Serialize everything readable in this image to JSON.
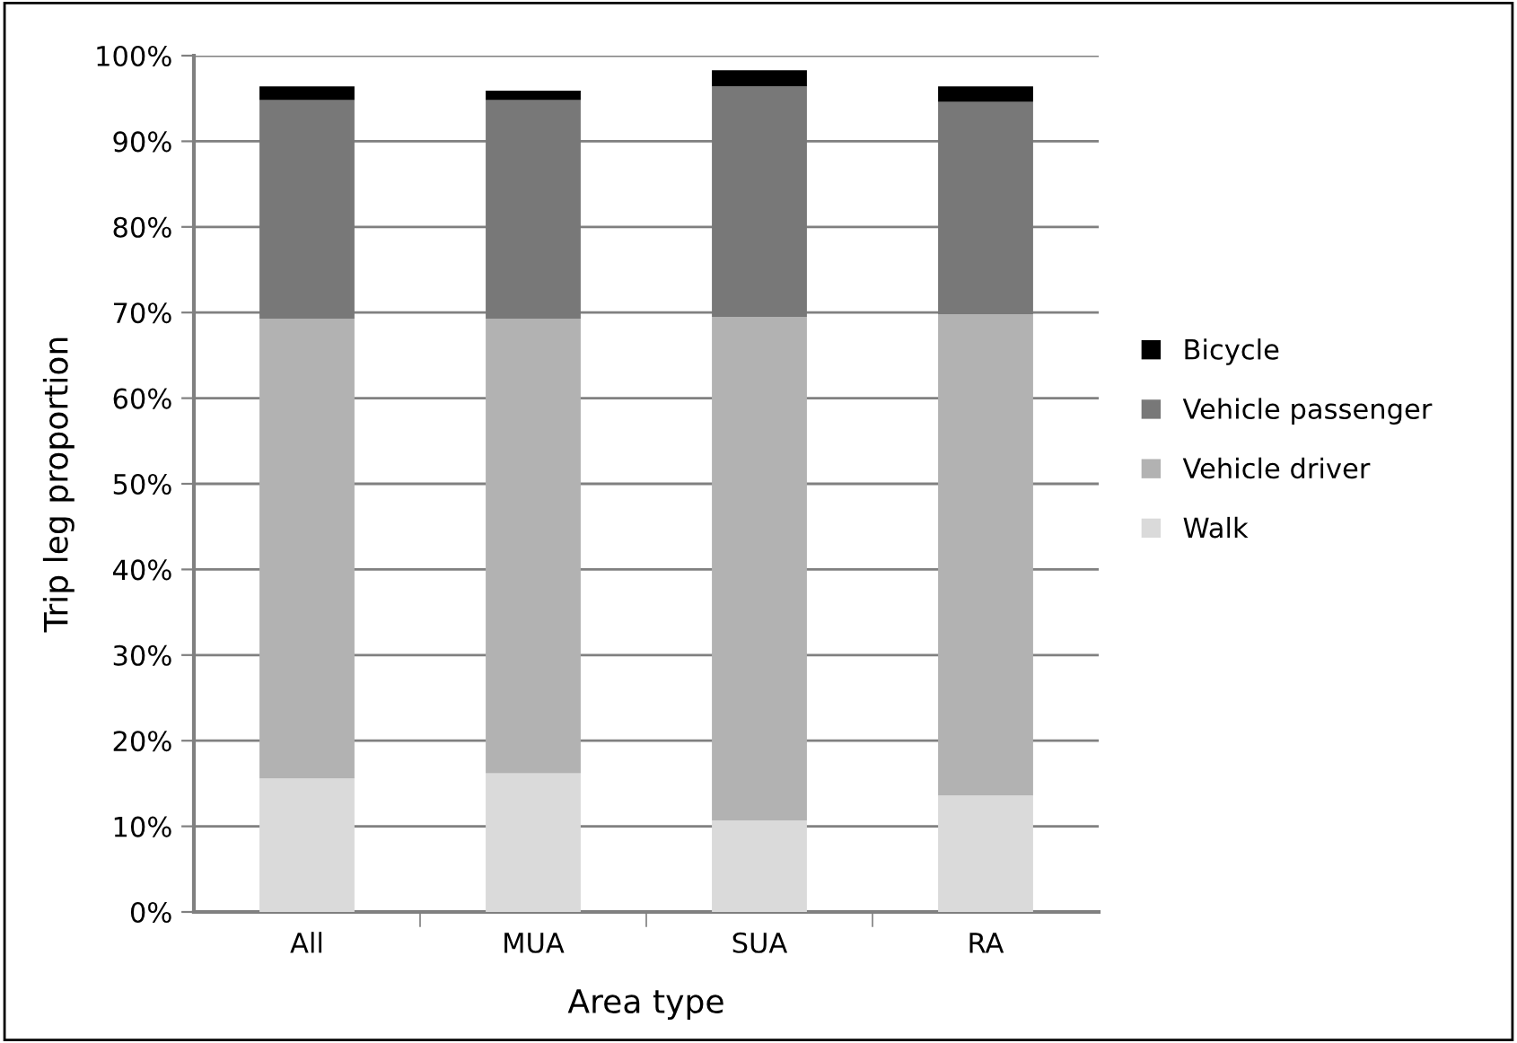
{
  "chart_data": {
    "type": "bar",
    "stacked": true,
    "xlabel": "Area type",
    "ylabel": "Trip leg proportion",
    "categories": [
      "All",
      "MUA",
      "SUA",
      "RA"
    ],
    "series": [
      {
        "name": "Walk",
        "color": "#dadada",
        "values": [
          15.6,
          16.2,
          10.7,
          13.6
        ]
      },
      {
        "name": "Vehicle driver",
        "color": "#b2b2b2",
        "values": [
          53.7,
          53.1,
          58.8,
          56.2
        ]
      },
      {
        "name": "Vehicle passenger",
        "color": "#787878",
        "values": [
          25.5,
          25.5,
          26.9,
          24.8
        ]
      },
      {
        "name": "Bicycle",
        "color": "#000000",
        "values": [
          1.6,
          1.1,
          1.9,
          1.8
        ]
      }
    ],
    "ylim": [
      0,
      100
    ],
    "yticks": [
      {
        "value": 0,
        "label": "0%"
      },
      {
        "value": 10,
        "label": "10%"
      },
      {
        "value": 20,
        "label": "20%"
      },
      {
        "value": 30,
        "label": "30%"
      },
      {
        "value": 40,
        "label": "40%"
      },
      {
        "value": 50,
        "label": "50%"
      },
      {
        "value": 60,
        "label": "60%"
      },
      {
        "value": 70,
        "label": "70%"
      },
      {
        "value": 80,
        "label": "80%"
      },
      {
        "value": 90,
        "label": "90%"
      },
      {
        "value": 100,
        "label": "100%"
      }
    ],
    "grid": "y",
    "legend": "right"
  }
}
